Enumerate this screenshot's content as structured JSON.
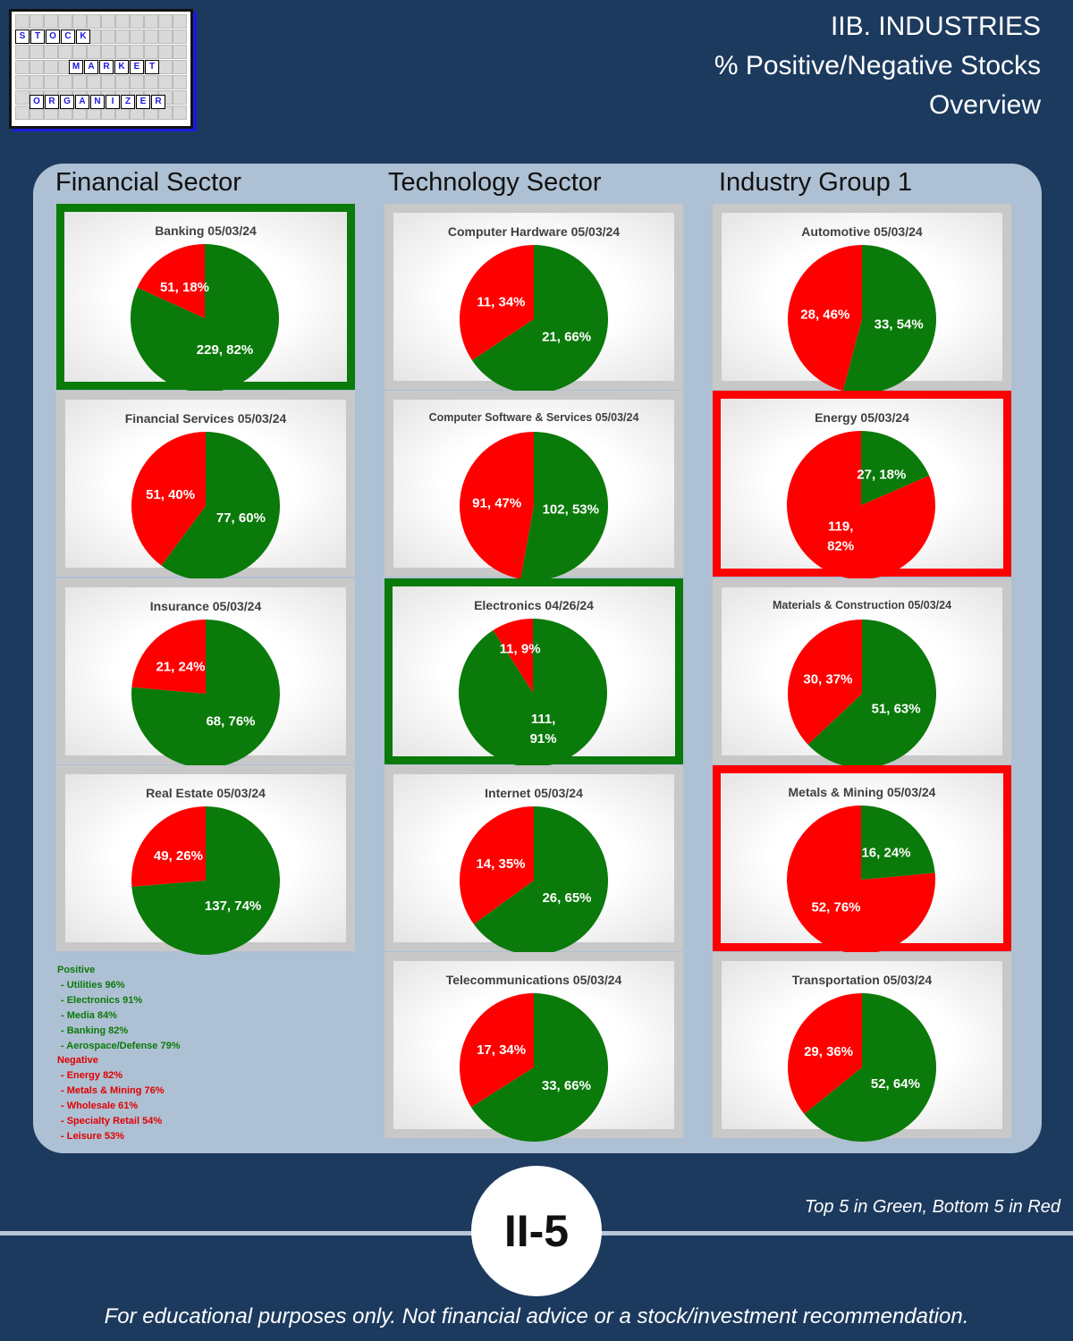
{
  "header": {
    "title_lines": [
      "IIB. INDUSTRIES",
      "% Positive/Negative Stocks",
      "Overview"
    ]
  },
  "logo": {
    "words": [
      "STOCK",
      "MARKET",
      "ORGANIZER"
    ]
  },
  "colors": {
    "positive": "#0a7a0a",
    "negative": "#ff0000",
    "background": "#1c3a5e",
    "panel": "#aec0d3"
  },
  "columns": [
    "Financial Sector",
    "Technology Sector",
    "Industry Group 1"
  ],
  "chart_data": [
    {
      "type": "pie",
      "title": "Banking 05/03/24",
      "column": 0,
      "highlight": "green",
      "categories": [
        "Negative",
        "Positive"
      ],
      "values": [
        51,
        229
      ],
      "percents": [
        18,
        82
      ],
      "labels": [
        "51, 18%",
        "229, 82%"
      ]
    },
    {
      "type": "pie",
      "title": "Financial Services 05/03/24",
      "column": 0,
      "highlight": "",
      "categories": [
        "Negative",
        "Positive"
      ],
      "values": [
        51,
        77
      ],
      "percents": [
        40,
        60
      ],
      "labels": [
        "51, 40%",
        "77, 60%"
      ]
    },
    {
      "type": "pie",
      "title": "Insurance 05/03/24",
      "column": 0,
      "highlight": "",
      "categories": [
        "Negative",
        "Positive"
      ],
      "values": [
        21,
        68
      ],
      "percents": [
        24,
        76
      ],
      "labels": [
        "21, 24%",
        "68, 76%"
      ]
    },
    {
      "type": "pie",
      "title": "Real Estate 05/03/24",
      "column": 0,
      "highlight": "",
      "categories": [
        "Negative",
        "Positive"
      ],
      "values": [
        49,
        137
      ],
      "percents": [
        26,
        74
      ],
      "labels": [
        "49, 26%",
        "137, 74%"
      ]
    },
    {
      "type": "pie",
      "title": "Computer Hardware 05/03/24",
      "column": 1,
      "highlight": "",
      "categories": [
        "Negative",
        "Positive"
      ],
      "values": [
        11,
        21
      ],
      "percents": [
        34,
        66
      ],
      "labels": [
        "11, 34%",
        "21, 66%"
      ]
    },
    {
      "type": "pie",
      "title": "Computer Software & Services 05/03/24",
      "column": 1,
      "highlight": "",
      "categories": [
        "Negative",
        "Positive"
      ],
      "values": [
        91,
        102
      ],
      "percents": [
        47,
        53
      ],
      "labels": [
        "91, 47%",
        "102, 53%"
      ]
    },
    {
      "type": "pie",
      "title": "Electronics 04/26/24",
      "column": 1,
      "highlight": "green",
      "categories": [
        "Negative",
        "Positive"
      ],
      "values": [
        11,
        111
      ],
      "percents": [
        9,
        91
      ],
      "labels": [
        "11, 9%",
        "111,\n91%"
      ]
    },
    {
      "type": "pie",
      "title": "Internet 05/03/24",
      "column": 1,
      "highlight": "",
      "categories": [
        "Negative",
        "Positive"
      ],
      "values": [
        14,
        26
      ],
      "percents": [
        35,
        65
      ],
      "labels": [
        "14, 35%",
        "26, 65%"
      ]
    },
    {
      "type": "pie",
      "title": "Telecommunications 05/03/24",
      "column": 1,
      "highlight": "",
      "categories": [
        "Negative",
        "Positive"
      ],
      "values": [
        17,
        33
      ],
      "percents": [
        34,
        66
      ],
      "labels": [
        "17, 34%",
        "33, 66%"
      ]
    },
    {
      "type": "pie",
      "title": "Automotive 05/03/24",
      "column": 2,
      "highlight": "",
      "categories": [
        "Negative",
        "Positive"
      ],
      "values": [
        28,
        33
      ],
      "percents": [
        46,
        54
      ],
      "labels": [
        "28, 46%",
        "33, 54%"
      ]
    },
    {
      "type": "pie",
      "title": "Energy 05/03/24",
      "column": 2,
      "highlight": "red",
      "categories": [
        "Negative",
        "Positive"
      ],
      "values": [
        119,
        27
      ],
      "percents": [
        82,
        18
      ],
      "labels": [
        "119,\n82%",
        "27, 18%"
      ]
    },
    {
      "type": "pie",
      "title": "Materials & Construction 05/03/24",
      "column": 2,
      "highlight": "",
      "categories": [
        "Negative",
        "Positive"
      ],
      "values": [
        30,
        51
      ],
      "percents": [
        37,
        63
      ],
      "labels": [
        "30, 37%",
        "51, 63%"
      ]
    },
    {
      "type": "pie",
      "title": "Metals & Mining 05/03/24",
      "column": 2,
      "highlight": "red",
      "categories": [
        "Negative",
        "Positive"
      ],
      "values": [
        52,
        16
      ],
      "percents": [
        76,
        24
      ],
      "labels": [
        "52, 76%",
        "16, 24%"
      ]
    },
    {
      "type": "pie",
      "title": "Transportation 05/03/24",
      "column": 2,
      "highlight": "",
      "categories": [
        "Negative",
        "Positive"
      ],
      "values": [
        29,
        52
      ],
      "percents": [
        36,
        64
      ],
      "labels": [
        "29, 36%",
        "52, 64%"
      ]
    }
  ],
  "summary": {
    "positive_heading": "Positive",
    "positive_items": [
      "- Utilities 96%",
      "- Electronics 91%",
      "- Media 84%",
      "- Banking 82%",
      "- Aerospace/Defense 79%"
    ],
    "negative_heading": "Negative",
    "negative_items": [
      "- Energy 82%",
      "- Metals & Mining 76%",
      "- Wholesale 61%",
      "- Specialty Retail 54%",
      "- Leisure 53%"
    ]
  },
  "note": "Top 5 in Green, Bottom 5 in Red",
  "badge": "II-5",
  "footer": "For educational purposes only. Not financial advice or a stock/investment recommendation."
}
